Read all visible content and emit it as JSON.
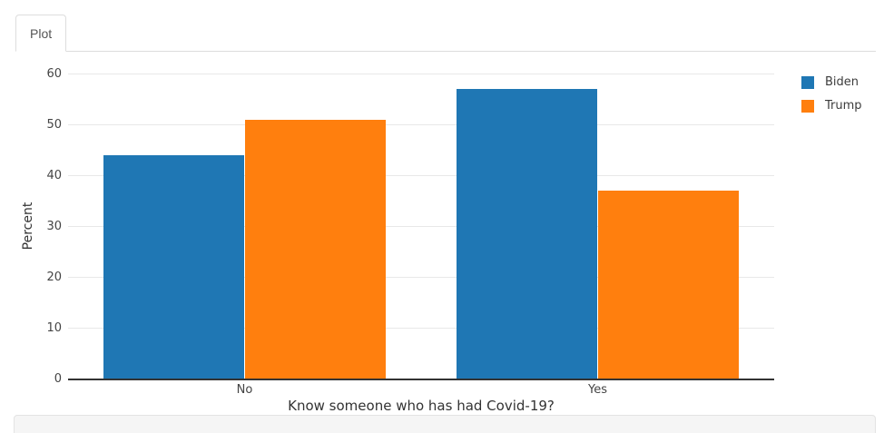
{
  "tab_bar": {
    "tabs": [
      {
        "label": "Plot",
        "active": true
      }
    ]
  },
  "chart_data": {
    "type": "bar",
    "title": "",
    "categories": [
      "No",
      "Yes"
    ],
    "series": [
      {
        "name": "Biden",
        "color": "#1f77b4",
        "values": [
          44,
          57
        ]
      },
      {
        "name": "Trump",
        "color": "#ff7f0e",
        "values": [
          51,
          37
        ]
      }
    ],
    "xlabel": "Know someone who has had Covid-19?",
    "ylabel": "Percent",
    "ylim": [
      0,
      62
    ],
    "yticks": [
      0,
      10,
      20,
      30,
      40,
      50,
      60
    ],
    "grid": true,
    "grid_color": "#e8e8e8",
    "axis_line_color": "#333333",
    "legend_position": "top-right",
    "legend_entries": [
      "Biden",
      "Trump"
    ]
  }
}
